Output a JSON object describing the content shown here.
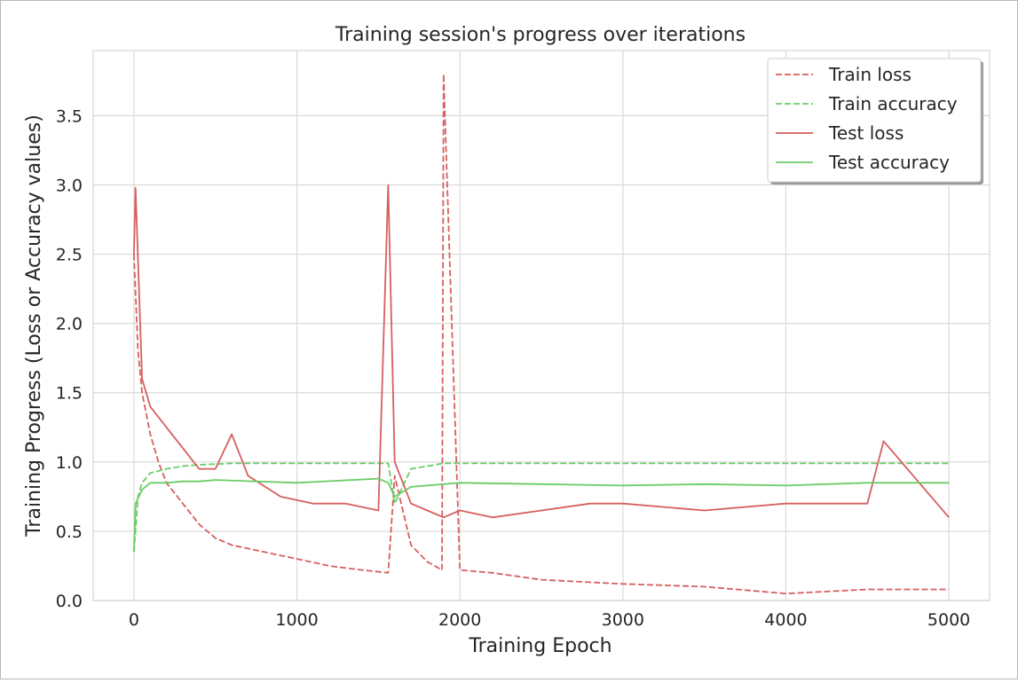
{
  "chart_data": {
    "type": "line",
    "title": "Training session's progress over iterations",
    "xlabel": "Training Epoch",
    "ylabel": "Training Progress (Loss or Accuracy values)",
    "xlim": [
      -250,
      5250
    ],
    "ylim": [
      0,
      3.97
    ],
    "xticks": [
      "0",
      "1000",
      "2000",
      "3000",
      "4000",
      "5000"
    ],
    "yticks": [
      "0.0",
      "0.5",
      "1.0",
      "1.5",
      "2.0",
      "2.5",
      "3.0",
      "3.5"
    ],
    "grid": true,
    "legend_position": "top-right",
    "colors": {
      "loss": "#d65f5f",
      "accuracy": "#6acc65",
      "grid": "#d9d9d9",
      "text": "#262626"
    },
    "series": [
      {
        "name": "Train loss",
        "style": "dashed",
        "color": "#d65f5f",
        "x": [
          0,
          25,
          50,
          100,
          150,
          200,
          300,
          400,
          500,
          600,
          800,
          1000,
          1200,
          1400,
          1560,
          1600,
          1700,
          1800,
          1890,
          1900,
          2000,
          2200,
          2500,
          3000,
          3500,
          4000,
          4500,
          5000
        ],
        "y": [
          2.5,
          1.8,
          1.5,
          1.2,
          1.0,
          0.85,
          0.7,
          0.55,
          0.45,
          0.4,
          0.35,
          0.3,
          0.25,
          0.22,
          0.2,
          0.9,
          0.4,
          0.28,
          0.22,
          3.8,
          0.22,
          0.2,
          0.15,
          0.12,
          0.1,
          0.05,
          0.08,
          0.08
        ]
      },
      {
        "name": "Train accuracy",
        "style": "dashed",
        "color": "#6acc65",
        "x": [
          0,
          25,
          50,
          100,
          200,
          300,
          400,
          600,
          1000,
          1500,
          1560,
          1600,
          1700,
          1900,
          2000,
          3000,
          4000,
          5000
        ],
        "y": [
          0.35,
          0.75,
          0.85,
          0.92,
          0.95,
          0.97,
          0.98,
          0.99,
          0.99,
          0.99,
          0.99,
          0.7,
          0.95,
          0.99,
          0.99,
          0.99,
          0.99,
          0.99
        ]
      },
      {
        "name": "Test loss",
        "style": "solid",
        "color": "#d65f5f",
        "x": [
          0,
          10,
          50,
          100,
          200,
          300,
          400,
          500,
          600,
          700,
          900,
          1100,
          1300,
          1500,
          1560,
          1600,
          1700,
          1800,
          1900,
          2000,
          2200,
          2500,
          2800,
          3000,
          3500,
          4000,
          4500,
          4600,
          5000
        ],
        "y": [
          2.5,
          2.98,
          1.6,
          1.4,
          1.25,
          1.1,
          0.95,
          0.95,
          1.2,
          0.9,
          0.75,
          0.7,
          0.7,
          0.65,
          3.0,
          1.0,
          0.7,
          0.65,
          0.6,
          0.65,
          0.6,
          0.65,
          0.7,
          0.7,
          0.65,
          0.7,
          0.7,
          1.15,
          0.6
        ]
      },
      {
        "name": "Test accuracy",
        "style": "solid",
        "color": "#6acc65",
        "x": [
          0,
          10,
          50,
          100,
          200,
          300,
          400,
          500,
          1000,
          1500,
          1560,
          1600,
          1700,
          2000,
          2500,
          3000,
          3500,
          4000,
          4500,
          5000
        ],
        "y": [
          0.35,
          0.7,
          0.8,
          0.85,
          0.85,
          0.86,
          0.86,
          0.87,
          0.85,
          0.88,
          0.85,
          0.75,
          0.82,
          0.85,
          0.84,
          0.83,
          0.84,
          0.83,
          0.85,
          0.85
        ]
      }
    ]
  }
}
